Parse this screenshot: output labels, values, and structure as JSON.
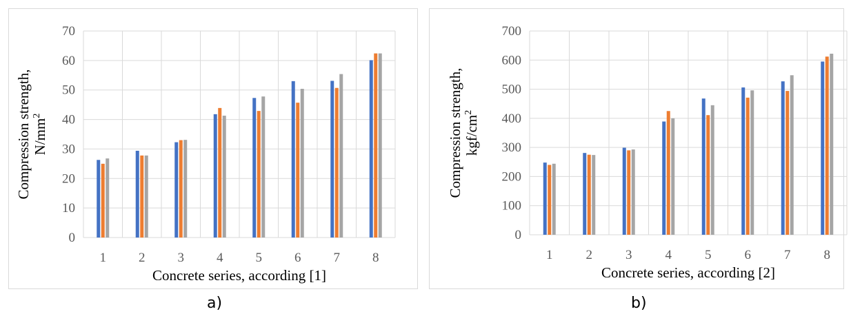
{
  "chart_data": [
    {
      "type": "bar",
      "caption": "a)",
      "xlabel": "Concrete series, according [1]",
      "ylabel_line1": "Compression strength,",
      "ylabel_line2": "N/mm",
      "ylabel_sup": "2",
      "categories": [
        "1",
        "2",
        "3",
        "4",
        "5",
        "6",
        "7",
        "8"
      ],
      "ylim": [
        0,
        70
      ],
      "yticks": [
        "0",
        "10",
        "20",
        "30",
        "40",
        "50",
        "60",
        "70"
      ],
      "grid": true,
      "series": [
        {
          "color": "#4472c4",
          "values": [
            26.3,
            29.4,
            32.3,
            41.8,
            47.3,
            53.0,
            53.1,
            60.1
          ]
        },
        {
          "color": "#ed7d31",
          "values": [
            25.0,
            27.8,
            33.0,
            43.9,
            42.9,
            45.7,
            50.7,
            62.4
          ]
        },
        {
          "color": "#a5a5a5",
          "values": [
            26.8,
            27.8,
            33.1,
            41.3,
            47.8,
            50.4,
            55.4,
            62.4
          ]
        }
      ]
    },
    {
      "type": "bar",
      "caption": "b)",
      "xlabel": "Concrete series, according [2]",
      "ylabel_line1": "Compression strength,",
      "ylabel_line2": "kgf/cm",
      "ylabel_sup": "2",
      "categories": [
        "1",
        "2",
        "3",
        "4",
        "5",
        "6",
        "7",
        "8"
      ],
      "ylim": [
        0,
        700
      ],
      "yticks": [
        "0",
        "100",
        "200",
        "300",
        "400",
        "500",
        "600",
        "700"
      ],
      "grid": true,
      "series": [
        {
          "color": "#4472c4",
          "values": [
            248,
            281,
            299,
            389,
            468,
            506,
            527,
            595
          ]
        },
        {
          "color": "#ed7d31",
          "values": [
            240,
            275,
            290,
            425,
            411,
            471,
            494,
            612
          ]
        },
        {
          "color": "#a5a5a5",
          "values": [
            244,
            274,
            293,
            400,
            445,
            496,
            548,
            622
          ]
        }
      ]
    }
  ]
}
